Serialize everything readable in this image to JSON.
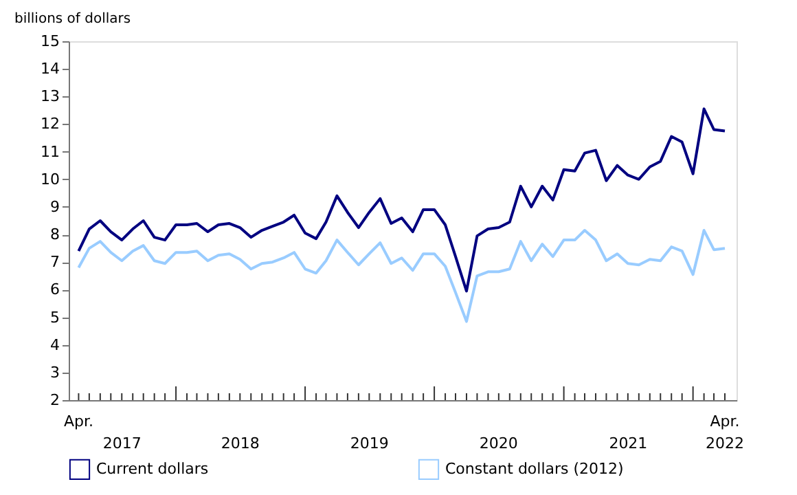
{
  "chart_data": {
    "type": "line",
    "ylabel": "billions of dollars",
    "x": [
      "2017-04",
      "2017-05",
      "2017-06",
      "2017-07",
      "2017-08",
      "2017-09",
      "2017-10",
      "2017-11",
      "2017-12",
      "2018-01",
      "2018-02",
      "2018-03",
      "2018-04",
      "2018-05",
      "2018-06",
      "2018-07",
      "2018-08",
      "2018-09",
      "2018-10",
      "2018-11",
      "2018-12",
      "2019-01",
      "2019-02",
      "2019-03",
      "2019-04",
      "2019-05",
      "2019-06",
      "2019-07",
      "2019-08",
      "2019-09",
      "2019-10",
      "2019-11",
      "2019-12",
      "2020-01",
      "2020-02",
      "2020-03",
      "2020-04",
      "2020-05",
      "2020-06",
      "2020-07",
      "2020-08",
      "2020-09",
      "2020-10",
      "2020-11",
      "2020-12",
      "2021-01",
      "2021-02",
      "2021-03",
      "2021-04",
      "2021-05",
      "2021-06",
      "2021-07",
      "2021-08",
      "2021-09",
      "2021-10",
      "2021-11",
      "2021-12",
      "2022-01",
      "2022-02",
      "2022-03",
      "2022-04"
    ],
    "series": [
      {
        "name": "Current dollars",
        "color": "#000080",
        "values": [
          7.4,
          8.2,
          8.5,
          8.1,
          7.8,
          8.2,
          8.5,
          7.9,
          7.8,
          8.35,
          8.35,
          8.4,
          8.1,
          8.35,
          8.4,
          8.25,
          7.9,
          8.15,
          8.3,
          8.45,
          8.7,
          8.05,
          7.85,
          8.45,
          9.4,
          8.8,
          8.25,
          8.8,
          9.3,
          8.4,
          8.6,
          8.1,
          8.9,
          8.9,
          8.35,
          7.2,
          5.95,
          7.95,
          8.2,
          8.25,
          8.45,
          9.75,
          9.0,
          9.75,
          9.25,
          10.35,
          10.3,
          10.95,
          11.05,
          9.95,
          10.5,
          10.15,
          10.0,
          10.45,
          10.65,
          11.55,
          11.35,
          10.2,
          12.55,
          11.8,
          11.75
        ]
      },
      {
        "name": "Constant dollars (2012)",
        "color": "#99ccff",
        "values": [
          6.8,
          7.5,
          7.75,
          7.35,
          7.05,
          7.4,
          7.6,
          7.05,
          6.95,
          7.35,
          7.35,
          7.4,
          7.05,
          7.25,
          7.3,
          7.1,
          6.75,
          6.95,
          7.0,
          7.15,
          7.35,
          6.75,
          6.6,
          7.05,
          7.8,
          7.35,
          6.9,
          7.3,
          7.7,
          6.95,
          7.15,
          6.7,
          7.3,
          7.3,
          6.85,
          5.9,
          4.85,
          6.5,
          6.65,
          6.65,
          6.75,
          7.75,
          7.05,
          7.65,
          7.2,
          7.8,
          7.8,
          8.15,
          7.8,
          7.05,
          7.3,
          6.95,
          6.9,
          7.1,
          7.05,
          7.55,
          7.4,
          6.55,
          8.15,
          7.45,
          7.5
        ]
      }
    ],
    "xlim": [
      "2017-03-04",
      "2022-05-04"
    ],
    "xticks": [
      {
        "value": "2017-04",
        "label": "Apr."
      },
      {
        "value": "2017-05",
        "label": null
      },
      {
        "value": "2017-06",
        "label": null
      },
      {
        "value": "2017-07",
        "label": null
      },
      {
        "value": "2017-08",
        "label": null
      },
      {
        "value": "2017-09",
        "label": null
      },
      {
        "value": "2017-10",
        "label": null
      },
      {
        "value": "2017-11",
        "label": null
      },
      {
        "value": "2017-12",
        "label": null
      },
      {
        "value": "2018-01",
        "label": null
      },
      {
        "value": "2018-02",
        "label": null
      },
      {
        "value": "2018-03",
        "label": null
      },
      {
        "value": "2018-04",
        "label": null
      },
      {
        "value": "2018-05",
        "label": null
      },
      {
        "value": "2018-06",
        "label": null
      },
      {
        "value": "2018-07",
        "label": null
      },
      {
        "value": "2018-08",
        "label": null
      },
      {
        "value": "2018-09",
        "label": null
      },
      {
        "value": "2018-10",
        "label": null
      },
      {
        "value": "2018-11",
        "label": null
      },
      {
        "value": "2018-12",
        "label": null
      },
      {
        "value": "2019-01",
        "label": null
      },
      {
        "value": "2019-02",
        "label": null
      },
      {
        "value": "2019-03",
        "label": null
      },
      {
        "value": "2019-04",
        "label": null
      },
      {
        "value": "2019-05",
        "label": null
      },
      {
        "value": "2019-06",
        "label": null
      },
      {
        "value": "2019-07",
        "label": null
      },
      {
        "value": "2019-08",
        "label": null
      },
      {
        "value": "2019-09",
        "label": null
      },
      {
        "value": "2019-10",
        "label": null
      },
      {
        "value": "2019-11",
        "label": null
      },
      {
        "value": "2019-12",
        "label": null
      },
      {
        "value": "2020-01",
        "label": null
      },
      {
        "value": "2020-02",
        "label": null
      },
      {
        "value": "2020-03",
        "label": null
      },
      {
        "value": "2020-04",
        "label": null
      },
      {
        "value": "2020-05",
        "label": null
      },
      {
        "value": "2020-06",
        "label": null
      },
      {
        "value": "2020-07",
        "label": null
      },
      {
        "value": "2020-08",
        "label": null
      },
      {
        "value": "2020-09",
        "label": null
      },
      {
        "value": "2020-10",
        "label": null
      },
      {
        "value": "2020-11",
        "label": null
      },
      {
        "value": "2020-12",
        "label": null
      },
      {
        "value": "2021-01",
        "label": null
      },
      {
        "value": "2021-02",
        "label": null
      },
      {
        "value": "2021-03",
        "label": null
      },
      {
        "value": "2021-04",
        "label": null
      },
      {
        "value": "2021-05",
        "label": null
      },
      {
        "value": "2021-06",
        "label": null
      },
      {
        "value": "2021-07",
        "label": null
      },
      {
        "value": "2021-08",
        "label": null
      },
      {
        "value": "2021-09",
        "label": null
      },
      {
        "value": "2021-10",
        "label": null
      },
      {
        "value": "2021-11",
        "label": null
      },
      {
        "value": "2021-12",
        "label": null
      },
      {
        "value": "2022-01",
        "label": null
      },
      {
        "value": "2022-02",
        "label": null
      },
      {
        "value": "2022-03",
        "label": null
      },
      {
        "value": "2022-04",
        "label": "Apr."
      }
    ],
    "annotations": [
      "2017",
      "2018",
      "2019",
      "2020",
      "2021",
      "2022"
    ],
    "ylim": [
      2,
      15
    ],
    "yticks": [
      2,
      3,
      4,
      5,
      6,
      7,
      8,
      9,
      10,
      11,
      12,
      13,
      14,
      15
    ],
    "grid": false,
    "legend": "bottom",
    "marker": "none",
    "line_style": "solid"
  }
}
